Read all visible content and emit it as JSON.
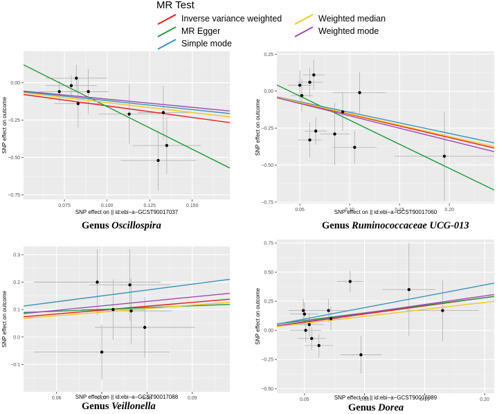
{
  "legend": {
    "title": "MR Test",
    "items": [
      {
        "key": "ivw",
        "label": "Inverse variance weighted",
        "color": "#e41a1c"
      },
      {
        "key": "egger",
        "label": "MR Egger",
        "color": "#1f9a3a"
      },
      {
        "key": "simple",
        "label": "Simple mode",
        "color": "#3a90b8"
      },
      {
        "key": "wmedian",
        "label": "Weighted median",
        "color": "#f2c819"
      },
      {
        "key": "wmode",
        "label": "Weighted mode",
        "color": "#9b4ab0"
      }
    ]
  },
  "chart_data": [
    {
      "type": "scatter",
      "caption_prefix": "Genus",
      "caption_taxon": "Oscillospira",
      "xlabel": "SNP effect on  || id:ebi−a−GCST90017037",
      "ylabel": "SNP effect on outcome",
      "xlim": [
        0.051,
        0.172
      ],
      "ylim": [
        -0.78,
        0.21
      ],
      "xticks": [
        0.075,
        0.1,
        0.125,
        0.15
      ],
      "xtick_labels": [
        "0.075",
        "0.100",
        "0.125",
        "0.150"
      ],
      "yticks": [
        0.0,
        -0.25,
        -0.5,
        -0.75
      ],
      "ytick_labels": [
        "0.00",
        "−0.25",
        "−0.50",
        "−0.75"
      ],
      "points": [
        {
          "x": 0.072,
          "y": -0.06,
          "se_x": 0.012,
          "se_y": 0.07
        },
        {
          "x": 0.079,
          "y": -0.02,
          "se_x": 0.015,
          "se_y": 0.07
        },
        {
          "x": 0.082,
          "y": 0.03,
          "se_x": 0.018,
          "se_y": 0.09
        },
        {
          "x": 0.083,
          "y": -0.14,
          "se_x": 0.014,
          "se_y": 0.16
        },
        {
          "x": 0.089,
          "y": -0.06,
          "se_x": 0.012,
          "se_y": 0.15
        },
        {
          "x": 0.113,
          "y": -0.21,
          "se_x": 0.018,
          "se_y": 0.2
        },
        {
          "x": 0.13,
          "y": -0.52,
          "se_x": 0.022,
          "se_y": 0.2
        },
        {
          "x": 0.133,
          "y": -0.2,
          "se_x": 0.015,
          "se_y": 0.18
        },
        {
          "x": 0.135,
          "y": -0.42,
          "se_x": 0.02,
          "se_y": 0.19
        }
      ],
      "lines": [
        {
          "method": "Inverse variance weighted",
          "key": "ivw",
          "slope": -1.55,
          "intercept": 0.0
        },
        {
          "method": "MR Egger",
          "key": "egger",
          "slope": -5.7,
          "intercept": 0.41
        },
        {
          "method": "Simple mode",
          "key": "simple",
          "slope": -1.2,
          "intercept": 0.0
        },
        {
          "method": "Weighted median",
          "key": "wmedian",
          "slope": -1.33,
          "intercept": 0.0
        },
        {
          "method": "Weighted mode",
          "key": "wmode",
          "slope": -1.1,
          "intercept": 0.0
        }
      ]
    },
    {
      "type": "scatter",
      "caption_prefix": "Genus",
      "caption_taxon": "Ruminococcaceae UCG-013",
      "xlabel": "SNP effect on  || id:ebi−a−GCST90017060",
      "ylabel": "SNP effect on outcome",
      "xlim": [
        0.027,
        0.245
      ],
      "ylim": [
        -0.76,
        0.27
      ],
      "xticks": [
        0.05,
        0.1,
        0.15,
        0.2
      ],
      "xtick_labels": [
        "0.05",
        "0.10",
        "0.15",
        "0.20"
      ],
      "yticks": [
        0.25,
        0.0,
        -0.25,
        -0.5,
        -0.75
      ],
      "ytick_labels": [
        "0.25",
        "0.00",
        "−0.25",
        "−0.50",
        "−0.75"
      ],
      "points": [
        {
          "x": 0.05,
          "y": 0.04,
          "se_x": 0.012,
          "se_y": 0.1
        },
        {
          "x": 0.052,
          "y": -0.03,
          "se_x": 0.011,
          "se_y": 0.11
        },
        {
          "x": 0.06,
          "y": 0.06,
          "se_x": 0.013,
          "se_y": 0.1
        },
        {
          "x": 0.064,
          "y": 0.11,
          "se_x": 0.011,
          "se_y": 0.1
        },
        {
          "x": 0.06,
          "y": -0.33,
          "se_x": 0.012,
          "se_y": 0.12
        },
        {
          "x": 0.066,
          "y": -0.27,
          "se_x": 0.011,
          "se_y": 0.09
        },
        {
          "x": 0.085,
          "y": -0.29,
          "se_x": 0.015,
          "se_y": 0.21
        },
        {
          "x": 0.093,
          "y": -0.14,
          "se_x": 0.012,
          "se_y": 0.13
        },
        {
          "x": 0.105,
          "y": -0.38,
          "se_x": 0.022,
          "se_y": 0.11
        },
        {
          "x": 0.11,
          "y": -0.01,
          "se_x": 0.027,
          "se_y": 0.14
        },
        {
          "x": 0.195,
          "y": -0.44,
          "se_x": 0.05,
          "se_y": 0.3
        }
      ],
      "lines": [
        {
          "method": "Inverse variance weighted",
          "key": "ivw",
          "slope": -1.57,
          "intercept": 0.0
        },
        {
          "method": "MR Egger",
          "key": "egger",
          "slope": -3.26,
          "intercept": 0.13
        },
        {
          "method": "Simple mode",
          "key": "simple",
          "slope": -1.43,
          "intercept": 0.0
        },
        {
          "method": "Weighted median",
          "key": "wmedian",
          "slope": -1.53,
          "intercept": 0.0
        },
        {
          "method": "Weighted mode",
          "key": "wmode",
          "slope": -1.67,
          "intercept": 0.0
        }
      ]
    },
    {
      "type": "scatter",
      "caption_prefix": "Genus",
      "caption_taxon": "Veillonella",
      "xlabel": "SNP effect on  || id:ebi−a−GCST90017088",
      "ylabel": "SNP effect on outcome",
      "xlim": [
        0.0527,
        0.0983
      ],
      "ylim": [
        -0.2,
        0.33
      ],
      "xticks": [
        0.06,
        0.07,
        0.08,
        0.09
      ],
      "xtick_labels": [
        "0.06",
        "0.07",
        "0.08",
        "0.09"
      ],
      "yticks": [
        0.3,
        0.2,
        0.1,
        0.0,
        -0.1
      ],
      "ytick_labels": [
        "0.3",
        "0.2",
        "0.1",
        "0.0",
        "−0.1"
      ],
      "points": [
        {
          "x": 0.069,
          "y": 0.2,
          "se_x": 0.014,
          "se_y": 0.12
        },
        {
          "x": 0.07,
          "y": -0.055,
          "se_x": 0.015,
          "se_y": 0.1
        },
        {
          "x": 0.0725,
          "y": 0.1,
          "se_x": 0.007,
          "se_y": 0.11
        },
        {
          "x": 0.0762,
          "y": 0.19,
          "se_x": 0.009,
          "se_y": 0.13
        },
        {
          "x": 0.0765,
          "y": 0.095,
          "se_x": 0.009,
          "se_y": 0.12
        },
        {
          "x": 0.0795,
          "y": 0.035,
          "se_x": 0.011,
          "se_y": 0.11
        }
      ],
      "lines": [
        {
          "method": "Inverse variance weighted",
          "key": "ivw",
          "slope": 1.4,
          "intercept": 0.0
        },
        {
          "method": "MR Egger",
          "key": "egger",
          "slope": 0.65,
          "intercept": 0.055
        },
        {
          "method": "Simple mode",
          "key": "simple",
          "slope": 2.14,
          "intercept": 0.0
        },
        {
          "method": "Weighted median",
          "key": "wmedian",
          "slope": 1.29,
          "intercept": 0.0
        },
        {
          "method": "Weighted mode",
          "key": "wmode",
          "slope": 1.62,
          "intercept": 0.0
        }
      ]
    },
    {
      "type": "scatter",
      "caption_prefix": "Genus",
      "caption_taxon": "Dorea",
      "xlabel": "SNP effect on  || id:ebi−a−GCST90016989",
      "ylabel": "SNP effect on outcome",
      "xlim": [
        0.027,
        0.208
      ],
      "ylim": [
        -0.54,
        0.78
      ],
      "xticks": [
        0.05,
        0.1,
        0.15,
        0.2
      ],
      "xtick_labels": [
        "0.05",
        "0.10",
        "0.15",
        "0.20"
      ],
      "yticks": [
        0.75,
        0.5,
        0.25,
        0.0,
        -0.25,
        -0.5
      ],
      "ytick_labels": [
        "0.75",
        "0.50",
        "0.25",
        "0.00",
        "−0.25",
        "−0.50"
      ],
      "points": [
        {
          "x": 0.049,
          "y": 0.17,
          "se_x": 0.012,
          "se_y": 0.1
        },
        {
          "x": 0.05,
          "y": 0.14,
          "se_x": 0.012,
          "se_y": 0.1
        },
        {
          "x": 0.051,
          "y": 0.0,
          "se_x": 0.013,
          "se_y": 0.1
        },
        {
          "x": 0.054,
          "y": 0.05,
          "se_x": 0.012,
          "se_y": 0.1
        },
        {
          "x": 0.056,
          "y": -0.07,
          "se_x": 0.012,
          "se_y": 0.1
        },
        {
          "x": 0.062,
          "y": -0.13,
          "se_x": 0.012,
          "se_y": 0.1
        },
        {
          "x": 0.07,
          "y": 0.17,
          "se_x": 0.014,
          "se_y": 0.1
        },
        {
          "x": 0.072,
          "y": 0.1,
          "se_x": 0.014,
          "se_y": 0.1
        },
        {
          "x": 0.088,
          "y": 0.42,
          "se_x": 0.011,
          "se_y": 0.09
        },
        {
          "x": 0.097,
          "y": -0.21,
          "se_x": 0.017,
          "se_y": 0.16
        },
        {
          "x": 0.137,
          "y": 0.35,
          "se_x": 0.022,
          "se_y": 0.4
        },
        {
          "x": 0.165,
          "y": 0.17,
          "se_x": 0.03,
          "se_y": 0.26
        }
      ],
      "lines": [
        {
          "method": "Inverse variance weighted",
          "key": "ivw",
          "slope": 1.4,
          "intercept": 0.0
        },
        {
          "method": "MR Egger",
          "key": "egger",
          "slope": 1.3,
          "intercept": 0.02
        },
        {
          "method": "Simple mode",
          "key": "simple",
          "slope": 1.95,
          "intercept": 0.0
        },
        {
          "method": "Weighted median",
          "key": "wmedian",
          "slope": 1.2,
          "intercept": 0.0
        },
        {
          "method": "Weighted mode",
          "key": "wmode",
          "slope": 1.48,
          "intercept": 0.0
        }
      ]
    }
  ]
}
